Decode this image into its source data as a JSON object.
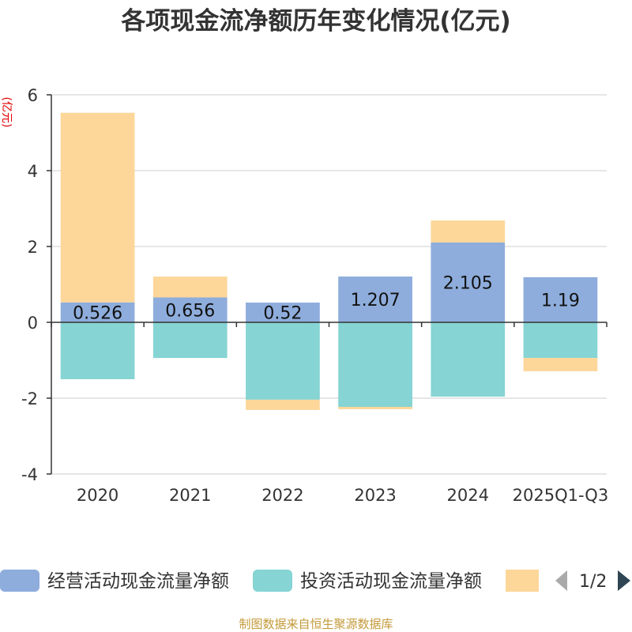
{
  "footer": "制图数据来自恒生聚源数据库",
  "legend": {
    "page": "1/2",
    "prev_icon": "triangle-left-icon",
    "next_icon": "triangle-right-icon"
  },
  "colors": {
    "title": "#333333",
    "axis": "#333333",
    "grid": "#cccccc",
    "ylabel": "#e00000",
    "footer": "#c49a3a",
    "pager_disabled": "#aaaaaa",
    "pager_active": "#2f4554"
  },
  "chart_data": {
    "type": "bar",
    "stacked": true,
    "title": "各项现金流净额历年变化情况(亿元)",
    "xlabel": "",
    "ylabel": "(亿元)",
    "categories": [
      "2020",
      "2021",
      "2022",
      "2023",
      "2024",
      "2025Q1-Q3"
    ],
    "ylim": [
      -4,
      6
    ],
    "yticks": [
      6,
      4,
      2,
      0,
      -2,
      -4
    ],
    "grid": true,
    "legend_position": "bottom",
    "series": [
      {
        "name": "经营活动现金流量净额",
        "values": [
          0.526,
          0.656,
          0.52,
          1.207,
          2.105,
          1.19
        ],
        "labels": [
          "0.526",
          "0.656",
          "0.52",
          "1.207",
          "2.105",
          "1.19"
        ],
        "color": "#8eaddc"
      },
      {
        "name": "投资活动现金流量净额",
        "values": [
          -1.5,
          -0.94,
          -2.04,
          -2.23,
          -1.96,
          -0.94
        ],
        "color": "#86d4d4"
      },
      {
        "name": "",
        "values": [
          5.0,
          0.55,
          -0.27,
          -0.06,
          0.58,
          -0.35
        ],
        "color": "#fdd699"
      }
    ]
  }
}
